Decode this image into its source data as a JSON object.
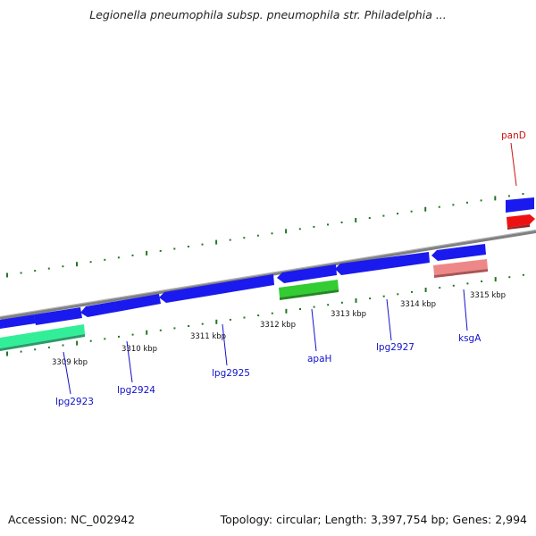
{
  "title": "Legionella pneumophila subsp. pneumophila str. Philadelphia ...",
  "footer": {
    "accession": "Accession: NC_002942",
    "summary": "Topology: circular; Length: 3,397,754 bp; Genes: 2,994"
  },
  "colors": {
    "forward_gene": "#1a1aee",
    "reverse_gene": "#1a1aee",
    "rna_gene": "#33cc33",
    "teal_gene": "#33ee99",
    "pink_gene": "#ee8888",
    "red_gene": "#ee1111",
    "backbone": "#888888",
    "ticks": "#227722",
    "label_blue": "#1111cc",
    "label_red": "#cc1111"
  },
  "ticks": [
    {
      "label": "3309 kbp"
    },
    {
      "label": "3310 kbp"
    },
    {
      "label": "3311 kbp"
    },
    {
      "label": "3312 kbp"
    },
    {
      "label": "3313 kbp"
    },
    {
      "label": "3314 kbp"
    },
    {
      "label": "3315 kbp"
    }
  ],
  "genes": [
    {
      "label": "lpg2923"
    },
    {
      "label": "lpg2924"
    },
    {
      "label": "lpg2925"
    },
    {
      "label": "apaH"
    },
    {
      "label": "lpg2927"
    },
    {
      "label": "ksgA"
    },
    {
      "label": "panD"
    }
  ]
}
